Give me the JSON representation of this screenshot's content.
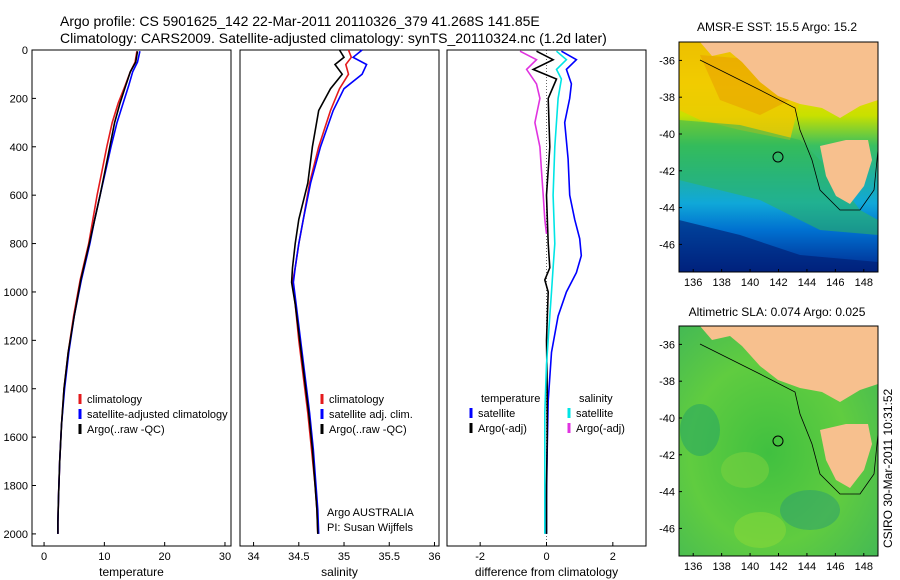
{
  "header": {
    "line1": "Argo profile: CS 5901625_142 22-Mar-2011 20110326_379 41.268S 141.85E",
    "line2": "Climatology: CARS2009. Satellite-adjusted climatology: synTS_20110324.nc (1.2d later)"
  },
  "footer": {
    "agency": "Argo AUSTRALIA",
    "pi": "PI: Susan Wijffels",
    "stamp": "CSIRO 30-Mar-2011 10:31:52"
  },
  "colors": {
    "red": "#e41a1c",
    "blue": "#0000ff",
    "black": "#000000",
    "cyan": "#00e5e5",
    "magenta": "#e033e0",
    "land": "#f7c08e"
  },
  "chart_data": [
    {
      "type": "line",
      "xlabel": "temperature",
      "ylabel": "",
      "xlim": [
        -2,
        31
      ],
      "ylim": [
        2050,
        0
      ],
      "x_ticks": [
        0,
        10,
        20,
        30
      ],
      "y_ticks": [
        0,
        200,
        400,
        600,
        800,
        1000,
        1200,
        1400,
        1600,
        1800,
        2000
      ],
      "legend": {
        "location": "lower-right",
        "entries": [
          "climatology",
          "satellite-adjusted climatology",
          "Argo(..raw -QC)"
        ]
      },
      "series": [
        {
          "name": "climatology",
          "color": "#e41a1c",
          "x": [
            15.4,
            15.1,
            14.3,
            13.4,
            12.3,
            11.3,
            10.4,
            9.6,
            8.8,
            8.1,
            7.4,
            6.0,
            4.9,
            4.0,
            3.3,
            2.9,
            2.6,
            2.4,
            2.3,
            2.3
          ],
          "y": [
            5,
            50,
            90,
            150,
            220,
            300,
            400,
            500,
            600,
            700,
            800,
            950,
            1100,
            1250,
            1400,
            1550,
            1700,
            1850,
            1950,
            2000
          ]
        },
        {
          "name": "satellite-adjusted climatology",
          "color": "#0000ff",
          "x": [
            15.9,
            15.5,
            14.7,
            14.0,
            13.1,
            12.1,
            11.1,
            10.2,
            9.3,
            8.4,
            7.6,
            6.2,
            5.0,
            4.1,
            3.4,
            2.9,
            2.6,
            2.4,
            2.3,
            2.3
          ],
          "y": [
            5,
            50,
            90,
            150,
            220,
            300,
            400,
            500,
            600,
            700,
            800,
            950,
            1100,
            1250,
            1400,
            1550,
            1700,
            1850,
            1950,
            2000
          ]
        },
        {
          "name": "Argo(..raw -QC)",
          "color": "#000000",
          "x": [
            15.5,
            15.2,
            14.3,
            13.5,
            12.6,
            11.7,
            10.9,
            10.1,
            9.3,
            8.4,
            7.5,
            6.1,
            5.0,
            4.0,
            3.3,
            2.9,
            2.6,
            2.4,
            2.3,
            2.3
          ],
          "y": [
            5,
            50,
            90,
            150,
            220,
            300,
            400,
            500,
            600,
            700,
            800,
            950,
            1100,
            1250,
            1400,
            1550,
            1700,
            1850,
            1950,
            2000
          ]
        }
      ]
    },
    {
      "type": "line",
      "xlabel": "salinity",
      "ylabel": "",
      "xlim": [
        33.85,
        36.05
      ],
      "ylim": [
        2050,
        0
      ],
      "x_ticks": [
        34,
        34.5,
        35,
        35.5,
        36
      ],
      "x_tick_labels": [
        "34",
        "34.5",
        "35",
        "35.5",
        "36"
      ],
      "legend": {
        "location": "lower-right",
        "entries": [
          "climatology",
          "satellite adj. clim.",
          "Argo(..raw -QC)"
        ]
      },
      "series": [
        {
          "name": "climatology",
          "color": "#e41a1c",
          "x": [
            35.05,
            35.08,
            35.02,
            35.05,
            34.95,
            34.85,
            34.72,
            34.62,
            34.55,
            34.5,
            34.46,
            34.43,
            34.46,
            34.5,
            34.55,
            34.6,
            34.64,
            34.68,
            34.7,
            34.71
          ],
          "y": [
            0,
            30,
            60,
            100,
            160,
            250,
            400,
            550,
            700,
            800,
            900,
            960,
            1050,
            1200,
            1350,
            1500,
            1650,
            1800,
            1900,
            2000
          ]
        },
        {
          "name": "satellite adj. clim.",
          "color": "#0000ff",
          "x": [
            35.2,
            35.1,
            35.25,
            35.2,
            35.0,
            34.88,
            34.74,
            34.63,
            34.55,
            34.5,
            34.46,
            34.44,
            34.47,
            34.52,
            34.57,
            34.62,
            34.66,
            34.69,
            34.71,
            34.72
          ],
          "y": [
            0,
            30,
            60,
            100,
            160,
            250,
            400,
            550,
            700,
            800,
            900,
            960,
            1050,
            1200,
            1350,
            1500,
            1650,
            1800,
            1900,
            2000
          ]
        },
        {
          "name": "Argo(..raw -QC)",
          "color": "#000000",
          "x": [
            34.95,
            35.0,
            34.9,
            34.98,
            34.85,
            34.72,
            34.65,
            34.6,
            34.5,
            34.46,
            34.43,
            34.42,
            34.46,
            34.51,
            34.56,
            34.61,
            34.65,
            34.68,
            34.7,
            34.71
          ],
          "y": [
            0,
            30,
            60,
            100,
            160,
            250,
            400,
            550,
            700,
            800,
            900,
            960,
            1050,
            1200,
            1350,
            1500,
            1650,
            1800,
            1900,
            2000
          ]
        }
      ]
    },
    {
      "type": "line",
      "xlabel": "difference from climatology",
      "ylabel": "",
      "xlim": [
        -3,
        3
      ],
      "ylim": [
        2050,
        0
      ],
      "x_ticks": [
        -2,
        0,
        2
      ],
      "legend": {
        "location": "lower",
        "groups": [
          {
            "title": "temperature",
            "entries": [
              "satellite",
              "Argo(-adj)"
            ]
          },
          {
            "title": "salinity",
            "entries": [
              "satellite",
              "Argo(-adj)"
            ]
          }
        ]
      },
      "series": [
        {
          "name": "temperature satellite",
          "color": "#0000ff",
          "x": [
            0.45,
            0.9,
            0.6,
            0.75,
            0.7,
            0.55,
            0.65,
            0.7,
            0.85,
            1.0,
            1.05,
            0.9,
            0.6,
            0.35,
            0.15,
            0.05,
            0.02,
            0.0,
            0.0
          ],
          "y": [
            5,
            40,
            80,
            140,
            200,
            300,
            450,
            600,
            700,
            780,
            850,
            920,
            1000,
            1100,
            1250,
            1450,
            1650,
            1850,
            2000
          ]
        },
        {
          "name": "temperature Argo(-adj)",
          "color": "#000000",
          "x": [
            -0.3,
            0.2,
            -0.4,
            0.3,
            0.05,
            0.1,
            0.0,
            0.05,
            0.1,
            -0.05,
            0.05,
            0.0,
            0.02,
            0.02,
            0.0,
            0.0
          ],
          "y": [
            5,
            40,
            80,
            120,
            200,
            400,
            600,
            800,
            900,
            950,
            1000,
            1200,
            1400,
            1600,
            1800,
            2000
          ]
        },
        {
          "name": "salinity satellite",
          "color": "#00e5e5",
          "x": [
            0.3,
            0.6,
            0.3,
            0.45,
            0.35,
            0.25,
            0.2,
            0.25,
            0.2,
            0.15,
            0.1,
            0.0,
            -0.05,
            -0.05,
            -0.05,
            -0.05
          ],
          "y": [
            5,
            40,
            80,
            120,
            200,
            400,
            600,
            800,
            900,
            1000,
            1100,
            1300,
            1500,
            1700,
            1900,
            2000
          ]
        },
        {
          "name": "salinity Argo(-adj)",
          "color": "#e033e0",
          "x": [
            -0.8,
            -0.3,
            -0.6,
            -0.3,
            -0.2,
            -0.35,
            -0.2,
            -0.15,
            -0.1,
            -0.05,
            0.0
          ],
          "y": [
            5,
            40,
            80,
            140,
            200,
            300,
            400,
            500,
            600,
            700,
            760
          ]
        }
      ]
    },
    {
      "type": "heatmap",
      "title": "AMSR-E SST: 15.5 Argo: 15.2",
      "xlim": [
        135,
        149
      ],
      "ylim": [
        -47.5,
        -35
      ],
      "x_ticks": [
        136,
        138,
        140,
        142,
        144,
        146,
        148
      ],
      "y_ticks": [
        -36,
        -38,
        -40,
        -42,
        -44,
        -46
      ],
      "marker": {
        "lon": 141.85,
        "lat": -41.27
      }
    },
    {
      "type": "heatmap",
      "title": "Altimetric SLA: 0.074 Argo: 0.025",
      "xlim": [
        135,
        149
      ],
      "ylim": [
        -47.5,
        -35
      ],
      "x_ticks": [
        136,
        138,
        140,
        142,
        144,
        146,
        148
      ],
      "y_ticks": [
        -36,
        -38,
        -40,
        -42,
        -44,
        -46
      ],
      "marker": {
        "lon": 141.85,
        "lat": -41.27
      }
    }
  ]
}
